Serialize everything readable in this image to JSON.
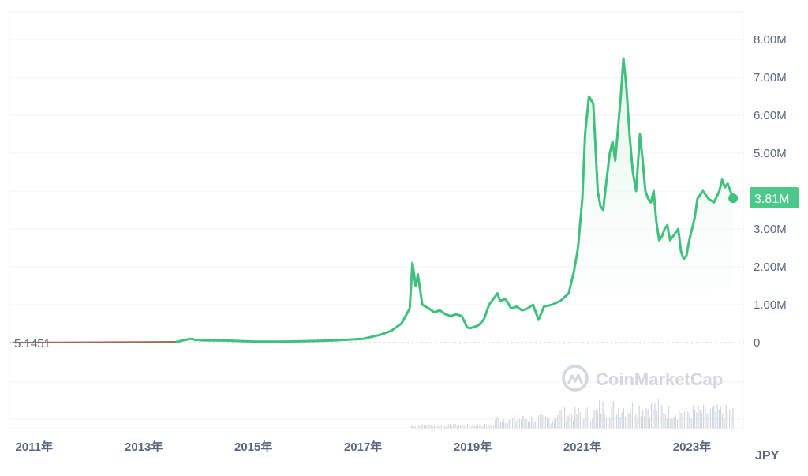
{
  "colors": {
    "line": "#3fc07c",
    "area_top": "#dff5e8",
    "grid": "#eef0f3",
    "axis_text": "#58667e",
    "start_line": "#a06a56",
    "volume": "#cfd6df",
    "badge_bg": "#4cc98a",
    "badge_text": "#ffffff"
  },
  "watermark": {
    "icon": "coinmarketcap-logo-icon",
    "text": "CoinMarketCap"
  },
  "currency_label": "JPY",
  "current_price_badge": "3.81M",
  "start_price_label": "5.1451",
  "chart_data": {
    "type": "area",
    "title": "",
    "xlabel": "",
    "ylabel": "",
    "ylim": [
      0,
      8500000
    ],
    "xlim": [
      2010.55,
      2023.95
    ],
    "grid": true,
    "y_ticks": [
      "0",
      "1.00M",
      "2.00M",
      "3.00M",
      "4.00M",
      "5.00M",
      "6.00M",
      "7.00M",
      "8.00M"
    ],
    "y_tick_values": [
      0,
      1000000,
      2000000,
      3000000,
      4000000,
      5000000,
      6000000,
      7000000,
      8000000
    ],
    "x_ticks": [
      "2011年",
      "2013年",
      "2015年",
      "2017年",
      "2019年",
      "2021年",
      "2023年"
    ],
    "x_tick_values": [
      2011,
      2013,
      2015,
      2017,
      2019,
      2021,
      2023
    ],
    "series": [
      {
        "x": [
          2010.6,
          2011.5,
          2012.5,
          2013.0,
          2013.6,
          2013.85,
          2013.95,
          2014.1,
          2014.5,
          2015.0,
          2015.5,
          2016.0,
          2016.5,
          2017.0,
          2017.3,
          2017.5,
          2017.7,
          2017.85,
          2017.9,
          2017.96,
          2018.0,
          2018.08,
          2018.2,
          2018.3,
          2018.4,
          2018.5,
          2018.6,
          2018.7,
          2018.8,
          2018.9,
          2018.95,
          2019.0,
          2019.1,
          2019.2,
          2019.3,
          2019.45,
          2019.5,
          2019.6,
          2019.7,
          2019.8,
          2019.9,
          2020.0,
          2020.1,
          2020.2,
          2020.3,
          2020.45,
          2020.6,
          2020.75,
          2020.85,
          2020.92,
          2021.0,
          2021.05,
          2021.12,
          2021.2,
          2021.28,
          2021.33,
          2021.38,
          2021.45,
          2021.5,
          2021.55,
          2021.6,
          2021.7,
          2021.75,
          2021.8,
          2021.86,
          2021.92,
          2021.98,
          2022.05,
          2022.1,
          2022.15,
          2022.2,
          2022.25,
          2022.3,
          2022.35,
          2022.4,
          2022.45,
          2022.5,
          2022.55,
          2022.6,
          2022.7,
          2022.75,
          2022.8,
          2022.85,
          2022.9,
          2022.95,
          2023.0,
          2023.05,
          2023.1,
          2023.15,
          2023.2,
          2023.3,
          2023.4,
          2023.5,
          2023.55,
          2023.6,
          2023.65,
          2023.7,
          2023.75
        ],
        "y": [
          0,
          0,
          5000,
          10000,
          20000,
          100000,
          70000,
          60000,
          55000,
          30000,
          25000,
          40000,
          60000,
          100000,
          200000,
          300000,
          500000,
          900000,
          2100000,
          1500000,
          1800000,
          1000000,
          900000,
          800000,
          850000,
          750000,
          700000,
          750000,
          700000,
          400000,
          380000,
          400000,
          450000,
          600000,
          1000000,
          1300000,
          1100000,
          1150000,
          900000,
          950000,
          850000,
          900000,
          1000000,
          600000,
          950000,
          1000000,
          1100000,
          1300000,
          1900000,
          2500000,
          3800000,
          5500000,
          6500000,
          6300000,
          4000000,
          3600000,
          3500000,
          4400000,
          5000000,
          5300000,
          4800000,
          6500000,
          7500000,
          6800000,
          5500000,
          4500000,
          4000000,
          5500000,
          4800000,
          4000000,
          3800000,
          3700000,
          4000000,
          3200000,
          2700000,
          2800000,
          3000000,
          3100000,
          2700000,
          2900000,
          3000000,
          2400000,
          2200000,
          2300000,
          2700000,
          3000000,
          3300000,
          3800000,
          3900000,
          4000000,
          3800000,
          3700000,
          4000000,
          4300000,
          4100000,
          4200000,
          4000000,
          3810000
        ]
      }
    ]
  }
}
